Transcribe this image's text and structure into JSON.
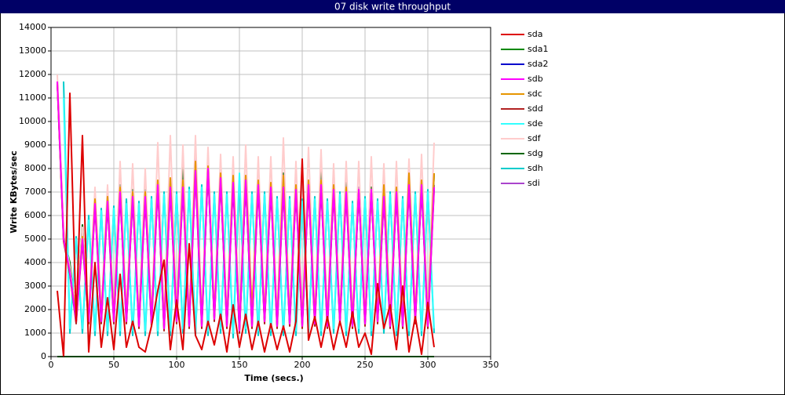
{
  "chart_data": {
    "type": "line",
    "title": "07 disk write throughput",
    "x_label": "Time (secs.)",
    "y_label": "Write KBytes/sec",
    "x": [
      5,
      10,
      15,
      20,
      25,
      30,
      35,
      40,
      45,
      50,
      55,
      60,
      65,
      70,
      75,
      80,
      85,
      90,
      95,
      100,
      105,
      110,
      115,
      120,
      125,
      130,
      135,
      140,
      145,
      150,
      155,
      160,
      165,
      170,
      175,
      180,
      185,
      190,
      195,
      200,
      205,
      210,
      215,
      220,
      225,
      230,
      235,
      240,
      245,
      250,
      255,
      260,
      265,
      270,
      275,
      280,
      285,
      290,
      295,
      300,
      305
    ],
    "xlim": [
      0,
      350
    ],
    "xticks": [
      0,
      50,
      100,
      150,
      200,
      250,
      300,
      350
    ],
    "ylim": [
      0,
      14000
    ],
    "yticks": [
      0,
      1000,
      2000,
      3000,
      4000,
      5000,
      6000,
      7000,
      8000,
      9000,
      10000,
      11000,
      12000,
      13000,
      14000
    ],
    "grid": true,
    "legend": "right",
    "series": [
      {
        "name": "sda",
        "color": "#dd0000",
        "values": [
          2800,
          0,
          11200,
          1500,
          9400,
          200,
          4000,
          400,
          2500,
          300,
          3500,
          400,
          1500,
          400,
          200,
          1300,
          2800,
          4100,
          300,
          2400,
          300,
          4800,
          900,
          300,
          1500,
          500,
          1800,
          200,
          2200,
          400,
          1800,
          300,
          1500,
          200,
          1400,
          300,
          1300,
          200,
          1500,
          8400,
          700,
          1700,
          400,
          1700,
          300,
          1500,
          400,
          1900,
          400,
          1000,
          100,
          3100,
          1200,
          2200,
          300,
          3000,
          200,
          1700,
          100,
          2300,
          400
        ]
      },
      {
        "name": "sda1",
        "color": "#008800",
        "values": [
          0,
          0,
          0,
          0,
          0,
          0,
          0,
          0,
          0,
          0,
          0,
          0,
          0,
          0,
          0,
          0,
          0,
          0,
          0,
          0,
          0,
          0,
          0,
          0,
          0,
          0,
          0,
          0,
          0,
          0,
          0,
          0,
          0,
          0,
          0,
          0,
          0,
          0,
          0,
          0,
          0,
          0,
          0,
          0,
          0,
          0,
          0,
          0,
          0,
          0,
          0,
          0,
          0,
          0,
          0,
          0,
          0,
          0,
          0,
          0,
          0
        ]
      },
      {
        "name": "sda2",
        "color": "#0000cc",
        "values": [
          0,
          0,
          0,
          0,
          0,
          0,
          0,
          0,
          0,
          0,
          0,
          0,
          0,
          0,
          0,
          0,
          0,
          0,
          0,
          0,
          0,
          0,
          0,
          0,
          0,
          0,
          0,
          0,
          0,
          0,
          0,
          0,
          0,
          0,
          0,
          0,
          0,
          0,
          0,
          0,
          0,
          0,
          0,
          0,
          0,
          0,
          0,
          0,
          0,
          0,
          0,
          0,
          0,
          0,
          0,
          0,
          0,
          0,
          0,
          0,
          0
        ]
      },
      {
        "name": "sdb",
        "color": "#ff00ff",
        "values": [
          11700,
          5000,
          3600,
          1500,
          5000,
          1500,
          6500,
          1500,
          6600,
          1500,
          7000,
          1500,
          6800,
          1300,
          6800,
          1400,
          7300,
          1200,
          7200,
          1500,
          7200,
          1300,
          7900,
          1300,
          8000,
          1600,
          7600,
          1300,
          7400,
          1100,
          7500,
          1300,
          7300,
          1500,
          7200,
          1300,
          7200,
          1400,
          7100,
          1300,
          7300,
          1400,
          7300,
          1300,
          7100,
          1500,
          7000,
          1300,
          7100,
          1400,
          7100,
          1500,
          6800,
          1300,
          7000,
          1300,
          7300,
          1500,
          7300,
          1300,
          7200
        ]
      },
      {
        "name": "sdc",
        "color": "#e69500",
        "values": [
          11700,
          5000,
          3600,
          1700,
          5100,
          1700,
          6700,
          1700,
          6800,
          1700,
          7200,
          1700,
          7000,
          1500,
          7000,
          1600,
          7500,
          1400,
          7600,
          1700,
          7500,
          1500,
          8300,
          1500,
          8100,
          1800,
          7800,
          1500,
          7700,
          1300,
          7700,
          2000,
          7500,
          1700,
          7400,
          1500,
          7700,
          1600,
          7300,
          1500,
          7500,
          1600,
          7500,
          1500,
          7300,
          1700,
          7200,
          1500,
          7100,
          1600,
          7000,
          1700,
          7300,
          1500,
          7200,
          1500,
          7800,
          1700,
          7500,
          1500,
          7800
        ]
      },
      {
        "name": "sdd",
        "color": "#b22222",
        "values": [
          11600,
          4900,
          3500,
          1400,
          4900,
          1400,
          6400,
          1400,
          6500,
          1400,
          6900,
          1400,
          6700,
          1200,
          6700,
          1300,
          7200,
          1100,
          7100,
          1400,
          7100,
          1200,
          7800,
          1200,
          7900,
          1500,
          7500,
          1200,
          7300,
          1000,
          7400,
          1200,
          7200,
          1400,
          7100,
          1200,
          7100,
          1300,
          7000,
          1200,
          7200,
          1300,
          7200,
          1200,
          7000,
          1400,
          6900,
          1200,
          7000,
          1300,
          7000,
          1400,
          6700,
          1200,
          6900,
          1200,
          7200,
          1400,
          7200,
          1200,
          7100
        ]
      },
      {
        "name": "sde",
        "color": "#33ffff",
        "values": [
          null,
          11000,
          1200,
          5000,
          1200,
          5800,
          1100,
          6200,
          1100,
          6300,
          1100,
          6500,
          1100,
          6500,
          1100,
          6700,
          1100,
          6900,
          1100,
          6900,
          1200,
          7100,
          1100,
          7200,
          1100,
          6900,
          1200,
          6900,
          1000,
          7800,
          1200,
          6900,
          1100,
          6900,
          1100,
          6700,
          1100,
          6700,
          1100,
          6600,
          1200,
          6700,
          1100,
          6600,
          1200,
          6900,
          1100,
          6500,
          1200,
          6700,
          1100,
          6600,
          1200,
          6900,
          1100,
          6700,
          1100,
          6900,
          1100,
          7000,
          1200
        ]
      },
      {
        "name": "sdf",
        "color": "#ffcccc",
        "values": [
          12000,
          5500,
          3800,
          1800,
          5500,
          1800,
          7200,
          1800,
          7300,
          1800,
          8300,
          1800,
          8200,
          1600,
          8000,
          1600,
          9100,
          1500,
          9400,
          1700,
          9000,
          1600,
          9400,
          1600,
          8900,
          1800,
          8600,
          1600,
          8500,
          1400,
          9000,
          1600,
          8500,
          1800,
          8500,
          1600,
          9300,
          1600,
          8300,
          1600,
          8900,
          1600,
          8800,
          1600,
          8200,
          1700,
          8300,
          1600,
          8300,
          1700,
          8500,
          1800,
          8200,
          1600,
          8300,
          1600,
          8400,
          1700,
          8600,
          1600,
          9100
        ]
      },
      {
        "name": "sdg",
        "color": "#006600",
        "values": [
          11700,
          5100,
          4000,
          1600,
          5600,
          1600,
          6700,
          1600,
          6800,
          1600,
          7300,
          1600,
          7100,
          1400,
          7100,
          1500,
          7400,
          1300,
          7500,
          1600,
          8200,
          1400,
          8200,
          1400,
          8000,
          1700,
          7700,
          1400,
          7500,
          1200,
          7500,
          1400,
          7400,
          1600,
          7300,
          1400,
          7800,
          1500,
          7200,
          1400,
          7400,
          1500,
          8000,
          1400,
          7300,
          1600,
          7400,
          1400,
          7100,
          1500,
          7200,
          1600,
          6900,
          1400,
          7100,
          1400,
          7400,
          1600,
          7400,
          1400,
          7800
        ]
      },
      {
        "name": "sdh",
        "color": "#00cccc",
        "values": [
          null,
          11700,
          1000,
          5100,
          1000,
          6000,
          900,
          6300,
          900,
          6400,
          900,
          6700,
          900,
          6600,
          900,
          6800,
          900,
          7000,
          900,
          7000,
          1000,
          7200,
          900,
          7300,
          900,
          7000,
          1000,
          7000,
          800,
          7500,
          1000,
          7000,
          900,
          7000,
          900,
          6800,
          900,
          6800,
          900,
          6700,
          1000,
          6800,
          900,
          6700,
          1000,
          7000,
          900,
          6600,
          1000,
          6800,
          900,
          6700,
          1000,
          7000,
          900,
          6800,
          900,
          7000,
          900,
          7100,
          1000
        ]
      },
      {
        "name": "sdi",
        "color": "#aa44cc",
        "values": [
          11700,
          5000,
          3700,
          1500,
          5100,
          1500,
          6600,
          1500,
          6700,
          1500,
          7100,
          1500,
          6900,
          1300,
          6900,
          1400,
          7400,
          1200,
          7400,
          1500,
          7900,
          1300,
          8600,
          1300,
          8100,
          1600,
          7700,
          1300,
          7500,
          1100,
          7600,
          1300,
          7400,
          1500,
          7300,
          1300,
          7300,
          1400,
          7200,
          1300,
          7400,
          1400,
          7400,
          1300,
          7200,
          1500,
          7100,
          1300,
          7200,
          1400,
          7200,
          1500,
          6900,
          1300,
          7100,
          1300,
          7400,
          1500,
          7400,
          1300,
          7300
        ]
      }
    ]
  }
}
